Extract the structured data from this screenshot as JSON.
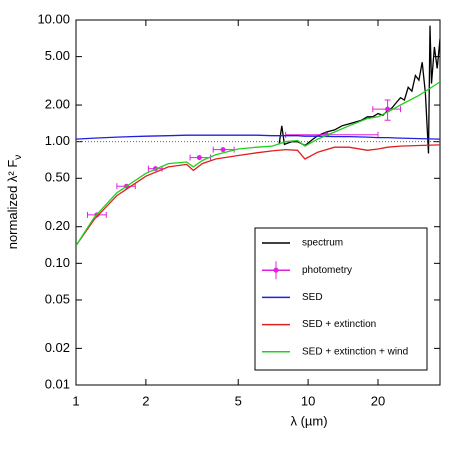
{
  "chart_data": {
    "type": "line",
    "log_x": true,
    "log_y": true,
    "xlabel": "λ (µm)",
    "ylabel": {
      "text": "normalized λ² F",
      "subscript": "ν"
    },
    "xlim": [
      1,
      37
    ],
    "ylim": [
      0.01,
      10
    ],
    "xticks": [
      1,
      2,
      5,
      10,
      20
    ],
    "yticks": [
      {
        "value": 10,
        "label": "10.00"
      },
      {
        "value": 5,
        "label": "5.00"
      },
      {
        "value": 2,
        "label": "2.00"
      },
      {
        "value": 1,
        "label": "1.00"
      },
      {
        "value": 0.5,
        "label": "0.50"
      },
      {
        "value": 0.2,
        "label": "0.20"
      },
      {
        "value": 0.1,
        "label": "0.10"
      },
      0.05,
      0.02,
      0.01
    ],
    "hline": 1,
    "legend": "lower right",
    "series": [
      {
        "name": "spectrum",
        "color": "#000000",
        "mode": "line",
        "x": [
          7.5,
          7.7,
          7.9,
          8.5,
          9,
          9.7,
          10.5,
          11,
          12,
          13,
          14,
          15,
          16,
          17,
          18,
          19,
          20,
          21,
          22,
          23,
          24,
          25,
          26,
          27,
          28,
          29,
          30,
          31,
          32,
          33,
          33.5,
          34,
          35,
          36,
          37
        ],
        "values": [
          0.95,
          1.35,
          0.95,
          1.0,
          1.0,
          0.93,
          1.05,
          1.12,
          1.2,
          1.25,
          1.35,
          1.4,
          1.45,
          1.5,
          1.6,
          1.6,
          1.7,
          1.65,
          1.8,
          1.9,
          2.1,
          2.3,
          2.2,
          2.8,
          2.6,
          3.5,
          3.2,
          4.5,
          2.5,
          0.8,
          9,
          3,
          6,
          4,
          7
        ]
      },
      {
        "name": "photometry",
        "color": "#e020e0",
        "mode": "errorbar",
        "x": [
          1.23,
          1.65,
          2.2,
          3.4,
          4.3,
          12,
          22
        ],
        "values": [
          0.25,
          0.43,
          0.6,
          0.74,
          0.86,
          1.14,
          1.85
        ],
        "x_low": [
          1.12,
          1.5,
          2.05,
          3.1,
          3.9,
          8,
          19
        ],
        "x_high": [
          1.35,
          1.8,
          2.35,
          3.8,
          4.8,
          20,
          25
        ],
        "y_low": [
          null,
          null,
          null,
          null,
          null,
          null,
          1.5
        ],
        "y_high": [
          null,
          null,
          null,
          null,
          null,
          null,
          2.2
        ]
      },
      {
        "name": "SED",
        "color": "#2020e0",
        "mode": "line",
        "x": [
          1,
          1.2,
          1.5,
          2,
          2.5,
          3,
          3.2,
          3.5,
          4,
          5,
          6,
          7,
          8,
          9,
          9.7,
          11,
          13,
          15,
          18,
          20,
          22,
          25,
          30,
          37
        ],
        "values": [
          1.05,
          1.07,
          1.09,
          1.11,
          1.12,
          1.13,
          1.13,
          1.13,
          1.13,
          1.13,
          1.13,
          1.12,
          1.12,
          1.12,
          1.11,
          1.11,
          1.1,
          1.1,
          1.09,
          1.08,
          1.08,
          1.07,
          1.06,
          1.05
        ]
      },
      {
        "name": "SED + extinction",
        "color": "#e02020",
        "mode": "line",
        "x": [
          1,
          1.2,
          1.5,
          2,
          2.5,
          3,
          3.2,
          3.5,
          4,
          5,
          6,
          7,
          8,
          9,
          9.7,
          11,
          13,
          15,
          18,
          20,
          22,
          25,
          30,
          37
        ],
        "values": [
          0.14,
          0.23,
          0.36,
          0.52,
          0.62,
          0.65,
          0.58,
          0.66,
          0.72,
          0.77,
          0.81,
          0.84,
          0.86,
          0.85,
          0.72,
          0.82,
          0.9,
          0.9,
          0.85,
          0.87,
          0.9,
          0.92,
          0.93,
          0.94
        ]
      },
      {
        "name": "SED + extinction + wind",
        "color": "#20d020",
        "mode": "line",
        "x": [
          1,
          1.2,
          1.5,
          2,
          2.5,
          3,
          3.2,
          3.5,
          4,
          5,
          6,
          7,
          8,
          9,
          9.7,
          11,
          13,
          15,
          18,
          20,
          22,
          25,
          30,
          37
        ],
        "values": [
          0.14,
          0.24,
          0.38,
          0.55,
          0.66,
          0.68,
          0.62,
          0.7,
          0.78,
          0.87,
          0.9,
          0.92,
          1.0,
          1.02,
          0.92,
          1.05,
          1.2,
          1.35,
          1.55,
          1.6,
          1.75,
          2.0,
          2.4,
          3.1
        ]
      }
    ]
  }
}
